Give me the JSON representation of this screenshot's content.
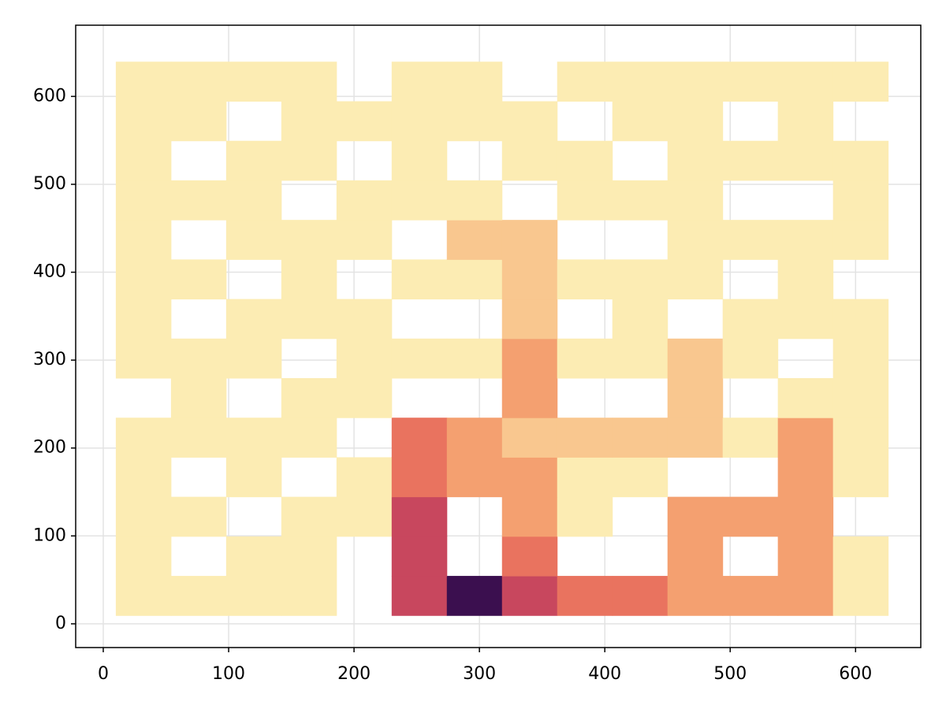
{
  "chart_data": {
    "type": "contourf",
    "x": [
      32,
      76,
      120,
      164,
      208,
      252,
      296,
      340,
      384,
      428,
      472,
      516,
      560,
      604
    ],
    "y": [
      32,
      77,
      122,
      167,
      212,
      257,
      302,
      347,
      392,
      437,
      482,
      527,
      572,
      617
    ],
    "z": [
      [
        1,
        1,
        1,
        1,
        null,
        5,
        7,
        5,
        4,
        4,
        3,
        3,
        3,
        1
      ],
      [
        1,
        null,
        1,
        1,
        null,
        5,
        null,
        4,
        null,
        null,
        3,
        null,
        3,
        1
      ],
      [
        1,
        1,
        null,
        1,
        1,
        5,
        null,
        3,
        1,
        null,
        3,
        3,
        3,
        null
      ],
      [
        1,
        null,
        1,
        null,
        1,
        4,
        3,
        3,
        1,
        1,
        null,
        null,
        3,
        1
      ],
      [
        1,
        1,
        1,
        1,
        null,
        4,
        3,
        2,
        2,
        2,
        2,
        1,
        3,
        1
      ],
      [
        null,
        1,
        null,
        1,
        1,
        null,
        null,
        3,
        null,
        null,
        2,
        null,
        1,
        1
      ],
      [
        1,
        1,
        1,
        null,
        1,
        1,
        1,
        3,
        1,
        1,
        2,
        1,
        null,
        1
      ],
      [
        1,
        null,
        1,
        1,
        1,
        null,
        null,
        2,
        null,
        1,
        null,
        1,
        1,
        1
      ],
      [
        1,
        1,
        null,
        1,
        null,
        1,
        1,
        2,
        1,
        1,
        1,
        null,
        1,
        null
      ],
      [
        1,
        null,
        1,
        1,
        1,
        null,
        2,
        2,
        null,
        null,
        1,
        1,
        1,
        1
      ],
      [
        1,
        1,
        1,
        null,
        1,
        1,
        1,
        null,
        1,
        1,
        1,
        null,
        null,
        1
      ],
      [
        1,
        null,
        1,
        1,
        null,
        1,
        null,
        1,
        1,
        null,
        1,
        1,
        1,
        1
      ],
      [
        1,
        1,
        null,
        1,
        1,
        1,
        1,
        1,
        null,
        1,
        1,
        null,
        1,
        null
      ],
      [
        1,
        1,
        1,
        1,
        null,
        1,
        1,
        null,
        1,
        1,
        1,
        1,
        1,
        1
      ]
    ],
    "colors": [
      "#fdf3c4",
      "#fcecb3",
      "#f9c78f",
      "#f4a070",
      "#e9735f",
      "#c8475e",
      "#8e2a66",
      "#3b0f4f"
    ],
    "xlim": [
      -22,
      652
    ],
    "ylim": [
      -27,
      681
    ],
    "xticks": [
      0,
      100,
      200,
      300,
      400,
      500,
      600
    ],
    "yticks": [
      0,
      100,
      200,
      300,
      400,
      500,
      600
    ],
    "grid": true
  }
}
